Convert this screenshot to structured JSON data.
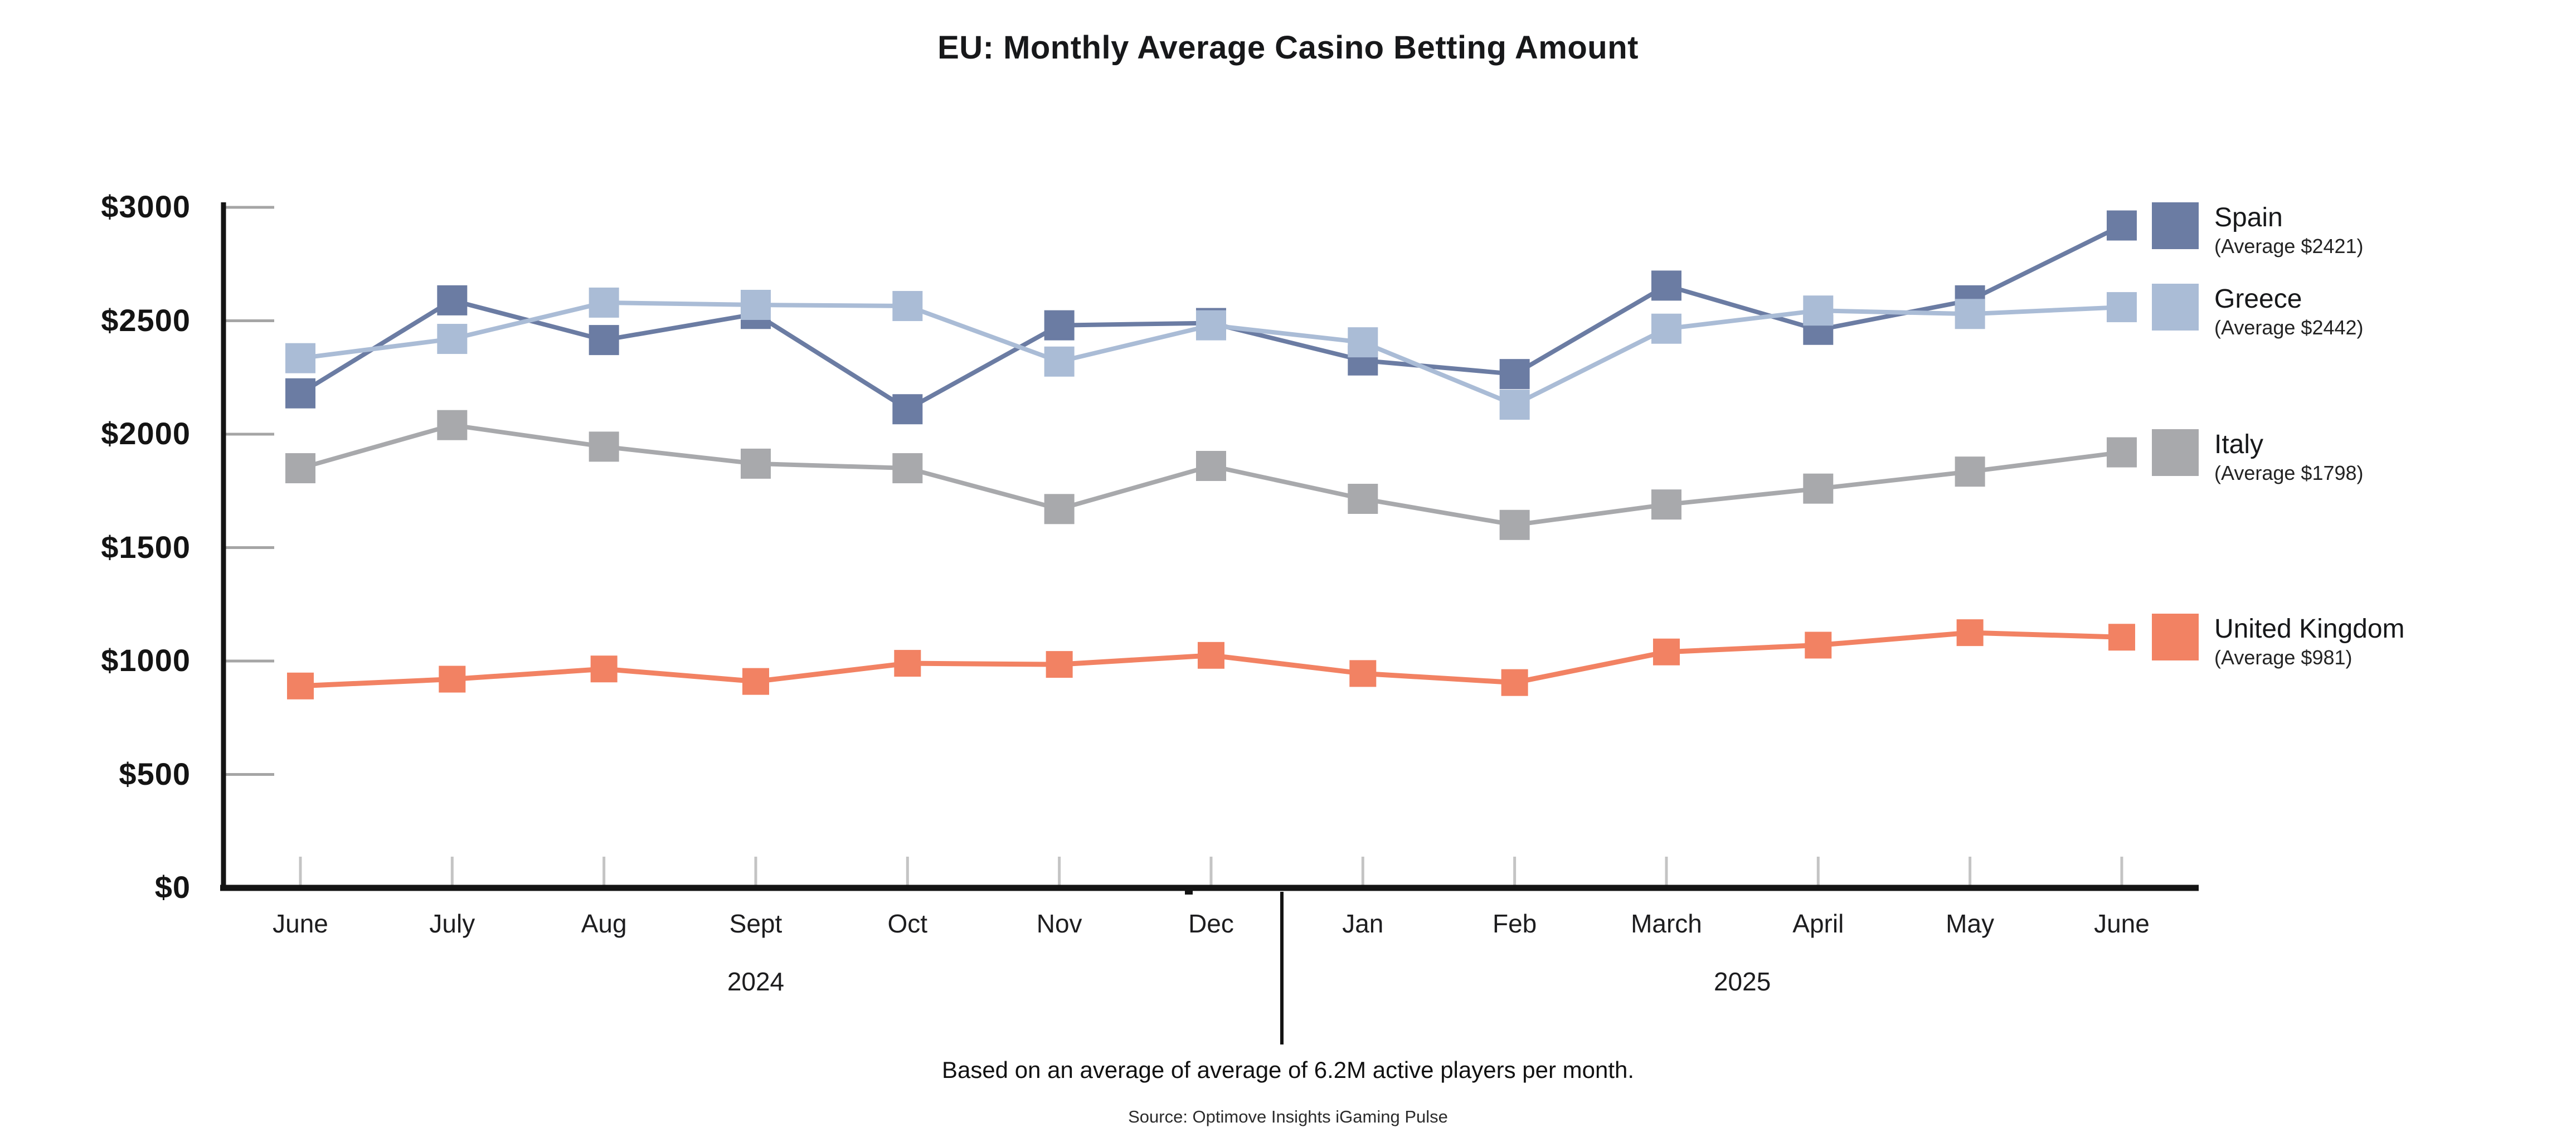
{
  "page": {
    "title": "EU: Monthly Average Casino Betting Amount",
    "footnote": "Based on an average of average of 6.2M active players per month.",
    "source": "Source: Optimove Insights iGaming Pulse"
  },
  "chart_data": {
    "type": "line",
    "title": "EU: Monthly Average Casino Betting Amount",
    "categories": [
      "June",
      "July",
      "Aug",
      "Sept",
      "Oct",
      "Nov",
      "Dec",
      "Jan",
      "Feb",
      "March",
      "April",
      "May",
      "June"
    ],
    "x_groups": [
      {
        "label": "2024",
        "first_month_index": 0,
        "last_month_index": 6
      },
      {
        "label": "2025",
        "first_month_index": 7,
        "last_month_index": 12
      }
    ],
    "y_axis": {
      "tick_labels": [
        "$3000",
        "$2500",
        "$2000",
        "$1500",
        "$1000",
        "$500",
        "$0"
      ],
      "tick_values": [
        3000,
        2500,
        2000,
        1500,
        1000,
        500,
        0
      ],
      "range": [
        0,
        3000
      ],
      "grid": "short tick stubs at left axis only"
    },
    "series": [
      {
        "id": "spain",
        "name": "Spain",
        "average": 2421,
        "average_label": "(Average $2421)",
        "color": "#6B7CA3",
        "values": [
          2180,
          2590,
          2415,
          2530,
          2110,
          2480,
          2490,
          2325,
          2265,
          2655,
          2460,
          2590,
          2920
        ]
      },
      {
        "id": "greece",
        "name": "Greece",
        "average": 2442,
        "average_label": "(Average $2442)",
        "color": "#AABCD6",
        "values": [
          2335,
          2420,
          2580,
          2570,
          2565,
          2320,
          2480,
          2405,
          2130,
          2465,
          2545,
          2530,
          2560
        ]
      },
      {
        "id": "italy",
        "name": "Italy",
        "average": 1798,
        "average_label": "(Average $1798)",
        "color": "#A8A9AC",
        "values": [
          1850,
          2040,
          1945,
          1870,
          1850,
          1670,
          1860,
          1715,
          1600,
          1690,
          1760,
          1835,
          1920
        ]
      },
      {
        "id": "uk",
        "name": "United Kingdom",
        "average": 981,
        "average_label": "(Average $981)",
        "color": "#F28263",
        "values": [
          890,
          920,
          965,
          910,
          990,
          985,
          1025,
          945,
          905,
          1040,
          1070,
          1125,
          1105
        ]
      }
    ],
    "legend_position": "right, each entry aligned to series end value",
    "year_divider_between": [
      "Dec",
      "Jan"
    ]
  },
  "colors": {
    "axis": "#141414",
    "y_tick_stub": "#a5a5a5",
    "month_tick": "#c4c4c4",
    "divider": "#141414",
    "background": "#ffffff"
  }
}
